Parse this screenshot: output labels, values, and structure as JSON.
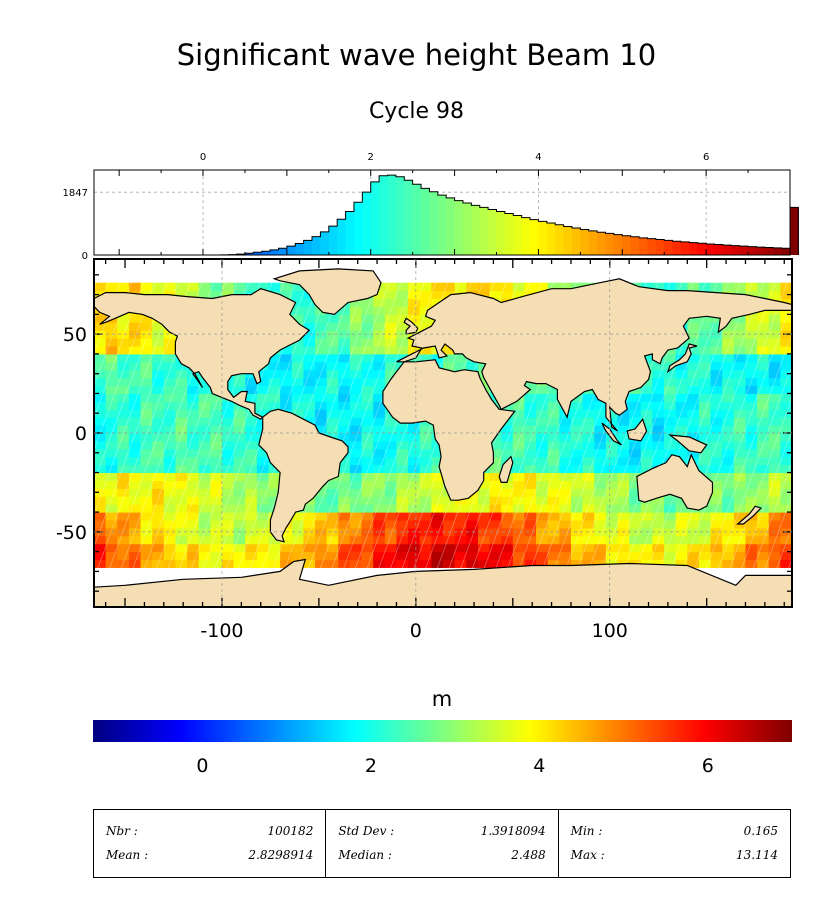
{
  "title": "Significant wave height Beam 10",
  "subtitle": "Cycle 98",
  "chart_data": [
    {
      "type": "histogram",
      "x_ticks": [
        "0",
        "2",
        "4",
        "6"
      ],
      "y_ticks": [
        "0",
        "1847"
      ],
      "xlim": [
        -1.3,
        7.0
      ],
      "x_range_approx": [
        0.2,
        7.0
      ],
      "mode_approx": 2.1,
      "peak_count_approx": 2350,
      "last_bin_count_approx": 1400,
      "bins": [
        [
          0.2,
          2
        ],
        [
          0.3,
          10
        ],
        [
          0.4,
          25
        ],
        [
          0.5,
          50
        ],
        [
          0.6,
          80
        ],
        [
          0.7,
          110
        ],
        [
          0.8,
          150
        ],
        [
          0.9,
          200
        ],
        [
          1.0,
          260
        ],
        [
          1.1,
          340
        ],
        [
          1.2,
          430
        ],
        [
          1.3,
          540
        ],
        [
          1.4,
          680
        ],
        [
          1.5,
          850
        ],
        [
          1.6,
          1050
        ],
        [
          1.7,
          1280
        ],
        [
          1.8,
          1550
        ],
        [
          1.9,
          1850
        ],
        [
          2.0,
          2150
        ],
        [
          2.1,
          2330
        ],
        [
          2.2,
          2350
        ],
        [
          2.3,
          2300
        ],
        [
          2.4,
          2200
        ],
        [
          2.5,
          2080
        ],
        [
          2.6,
          1960
        ],
        [
          2.7,
          1860
        ],
        [
          2.8,
          1760
        ],
        [
          2.9,
          1680
        ],
        [
          3.0,
          1600
        ],
        [
          3.1,
          1530
        ],
        [
          3.2,
          1460
        ],
        [
          3.3,
          1400
        ],
        [
          3.4,
          1340
        ],
        [
          3.5,
          1280
        ],
        [
          3.6,
          1220
        ],
        [
          3.7,
          1160
        ],
        [
          3.8,
          1100
        ],
        [
          3.9,
          1040
        ],
        [
          4.0,
          990
        ],
        [
          4.1,
          940
        ],
        [
          4.2,
          890
        ],
        [
          4.3,
          840
        ],
        [
          4.4,
          795
        ],
        [
          4.5,
          750
        ],
        [
          4.6,
          710
        ],
        [
          4.7,
          670
        ],
        [
          4.8,
          635
        ],
        [
          4.9,
          600
        ],
        [
          5.0,
          565
        ],
        [
          5.1,
          535
        ],
        [
          5.2,
          505
        ],
        [
          5.3,
          480
        ],
        [
          5.4,
          455
        ],
        [
          5.5,
          430
        ],
        [
          5.6,
          405
        ],
        [
          5.7,
          385
        ],
        [
          5.8,
          365
        ],
        [
          5.9,
          345
        ],
        [
          6.0,
          325
        ],
        [
          6.1,
          308
        ],
        [
          6.2,
          290
        ],
        [
          6.3,
          275
        ],
        [
          6.4,
          260
        ],
        [
          6.5,
          246
        ],
        [
          6.6,
          232
        ],
        [
          6.7,
          220
        ],
        [
          6.8,
          210
        ],
        [
          6.9,
          200
        ],
        [
          7.0,
          1400
        ]
      ]
    },
    {
      "type": "map",
      "projection": "equirectangular",
      "variable": "significant wave height",
      "x_ticks": [
        "-100",
        "0",
        "100"
      ],
      "y_ticks": [
        "50",
        "0",
        "-50"
      ],
      "lon_range": [
        -166,
        194
      ],
      "lat_range": [
        -88,
        88
      ]
    }
  ],
  "colorbar": {
    "label": "m",
    "ticks": [
      "0",
      "2",
      "4",
      "6"
    ],
    "range": [
      -1.3,
      7.0
    ],
    "colors": [
      "#00007f",
      "#0000ff",
      "#007fff",
      "#00ffff",
      "#7fff7f",
      "#ffff00",
      "#ff7f00",
      "#ff0000",
      "#7f0000"
    ]
  },
  "stats": {
    "nbr_label": "Nbr :",
    "nbr": "100182",
    "mean_label": "Mean :",
    "mean": "2.8298914",
    "std_label": "Std Dev :",
    "std": "1.3918094",
    "median_label": "Median :",
    "median": "2.488",
    "min_label": "Min :",
    "min": "0.165",
    "max_label": "Max :",
    "max": "13.114"
  },
  "land_color": "#f5deb3"
}
